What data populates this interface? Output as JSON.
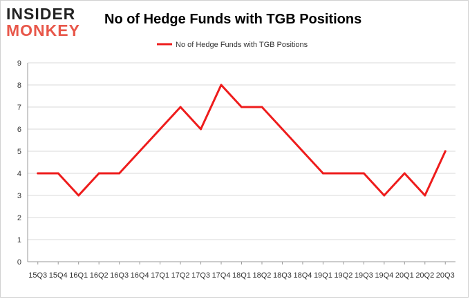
{
  "logo": {
    "line1": "INSIDER",
    "line2": "MONKEY"
  },
  "colors": {
    "series": "#ee1c1c",
    "grid": "#d9d9d9",
    "axis": "#999999",
    "logo_accent": "#e8574a"
  },
  "chart_data": {
    "type": "line",
    "title": "No of Hedge Funds with TGB Positions",
    "xlabel": "",
    "ylabel": "",
    "ylim": [
      0,
      9
    ],
    "yticks": [
      0,
      1,
      2,
      3,
      4,
      5,
      6,
      7,
      8,
      9
    ],
    "grid": true,
    "legend_position": "top-center",
    "categories": [
      "15Q3",
      "15Q4",
      "16Q1",
      "16Q2",
      "16Q3",
      "16Q4",
      "17Q1",
      "17Q2",
      "17Q3",
      "17Q4",
      "18Q1",
      "18Q2",
      "18Q3",
      "18Q4",
      "19Q1",
      "19Q2",
      "19Q3",
      "19Q4",
      "20Q1",
      "20Q2",
      "20Q3"
    ],
    "series": [
      {
        "name": "No of Hedge Funds with TGB Positions",
        "values": [
          4,
          4,
          3,
          4,
          4,
          5,
          6,
          7,
          6,
          8,
          7,
          7,
          6,
          5,
          4,
          4,
          4,
          3,
          4,
          3,
          5
        ]
      }
    ]
  }
}
